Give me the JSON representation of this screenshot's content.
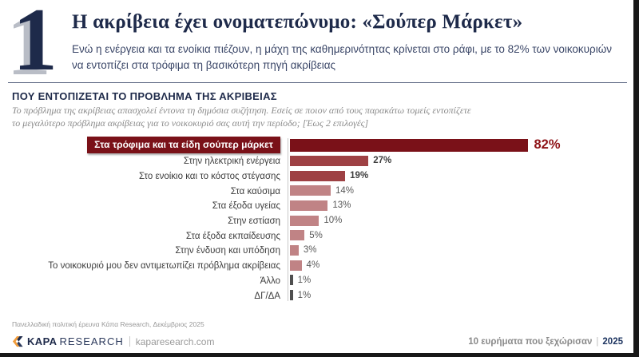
{
  "page": {
    "number": "1",
    "title": "Η ακρίβεια έχει ονοματεπώνυμο: «Σούπερ Μάρκετ»",
    "subtitle": "Ενώ η ενέργεια και τα ενοίκια πιέζουν, η μάχη της καθημερινότητας κρίνεται στο ράφι, με το 82% των νοικοκυριών\nνα εντοπίζει στα τρόφιμα τη βασικότερη πηγή ακρίβειας"
  },
  "section": {
    "heading": "ΠΟΥ ΕΝΤΟΠΙΖΕΤΑΙ ΤΟ ΠΡΟΒΛΗΜΑ ΤΗΣ ΑΚΡΙΒΕΙΑΣ",
    "question": "Το πρόβλημα της ακρίβειας απασχολεί έντονα τη δημόσια συζήτηση. Εσείς σε ποιον από τους παρακάτω τομείς εντοπίζετε\nτο μεγαλύτερο πρόβλημα ακρίβειας για το νοικοκυριό σας αυτή την περίοδο; [Έως 2 επιλογές]"
  },
  "chart_data": {
    "type": "bar",
    "orientation": "horizontal",
    "title": "ΠΟΥ ΕΝΤΟΠΙΖΕΤΑΙ ΤΟ ΠΡΟΒΛΗΜΑ ΤΗΣ ΑΚΡΙΒΕΙΑΣ",
    "categories": [
      "Στα τρόφιμα και τα είδη σούπερ μάρκετ",
      "Στην ηλεκτρική ενέργεια",
      "Στο ενοίκιο και το κόστος στέγασης",
      "Στα καύσιμα",
      "Στα έξοδα υγείας",
      "Στην εστίαση",
      "Στα έξοδα εκπαίδευσης",
      "Στην ένδυση και υπόδηση",
      "Το νοικοκυριό μου δεν αντιμετωπίζει πρόβλημα ακρίβειας",
      "Άλλο",
      "ΔΓ/ΔΑ"
    ],
    "values": [
      82,
      27,
      19,
      14,
      13,
      10,
      5,
      3,
      4,
      1,
      1
    ],
    "value_labels": [
      "82%",
      "27%",
      "19%",
      "14%",
      "13%",
      "10%",
      "5%",
      "3%",
      "4%",
      "1%",
      "1%"
    ],
    "bar_colors": [
      "#7a1118",
      "#9e4144",
      "#9e4144",
      "#c08385",
      "#c08385",
      "#c08385",
      "#c08385",
      "#c08385",
      "#c08385",
      "#4f4f4f",
      "#4f4f4f"
    ],
    "value_styles": [
      "hero",
      "bold",
      "bold",
      "normal",
      "normal",
      "normal",
      "normal",
      "normal",
      "normal",
      "normal",
      "normal"
    ],
    "highlight_index": 0,
    "xlim": [
      0,
      100
    ],
    "grid": false,
    "legend": false
  },
  "footer": {
    "survey_note": "Πανελλαδική πολιτική έρευνα Κάπα Research, Δεκέμβριος 2025",
    "brand": {
      "name_bold": "KAPA",
      "name_light": "RESEARCH",
      "website": "kaparesearch.com"
    },
    "right": {
      "text": "10 ευρήματα που ξεχώρισαν",
      "separator": "|",
      "year": "2025"
    }
  },
  "colors": {
    "navy": "#1e2a4a",
    "maroon": "#7a1118",
    "brick": "#9e4144",
    "rose": "#c08385",
    "gray_bar": "#4f4f4f",
    "frame": "#181818",
    "logo_orange": "#f09c3c"
  }
}
